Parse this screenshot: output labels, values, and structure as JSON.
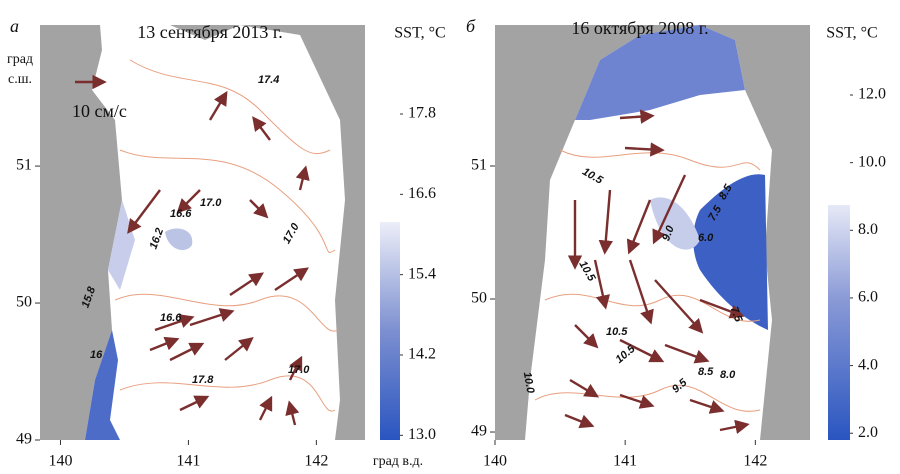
{
  "panels": [
    {
      "letter": "а",
      "title": "13 сентября 2013 г.",
      "unit": "SST, °C",
      "lat_label": [
        "град",
        "с.ш."
      ],
      "lon_label": "град в.д.",
      "scale_label": "10 см/с",
      "xlim": [
        139.84,
        142.38
      ],
      "ylim": [
        49,
        52.03
      ],
      "xticks": [
        140,
        141,
        142
      ],
      "yticks": [
        49,
        50,
        51
      ],
      "colorbar_lim": [
        12.93,
        17.8
      ],
      "colorbar_ticks": [
        {
          "value": 13,
          "label": "13.0"
        },
        {
          "value": 14.2,
          "label": "14.2"
        },
        {
          "value": 15.4,
          "label": "15.4"
        },
        {
          "value": 16.6,
          "label": "16.6"
        },
        {
          "value": 17.8,
          "label": "17.8"
        }
      ],
      "contour_labels": [
        "17.4",
        "17.0",
        "16.6",
        "16.2",
        "17.0",
        "15.8",
        "16.6",
        "17.0",
        "17.8",
        "16"
      ]
    },
    {
      "letter": "б",
      "title": "16 октября 2008 г.",
      "unit": "SST, °C",
      "xlim": [
        140,
        142.42
      ],
      "ylim": [
        48.94,
        52.06
      ],
      "xticks": [
        140,
        141,
        142
      ],
      "yticks": [
        49,
        50,
        51
      ],
      "colorbar_lim": [
        1.8,
        12
      ],
      "colorbar_ticks": [
        {
          "value": 2,
          "label": "2.0"
        },
        {
          "value": 4,
          "label": "4.0"
        },
        {
          "value": 6,
          "label": "6.0"
        },
        {
          "value": 8,
          "label": "8.0"
        },
        {
          "value": 10,
          "label": "10.0"
        },
        {
          "value": 12,
          "label": "12.0"
        }
      ],
      "contour_labels": [
        "10.5",
        "10.5",
        "10.5",
        "10.5",
        "9.0",
        "8.5",
        "7.5",
        "6.0",
        "7.5",
        "8.5",
        "9.5",
        "8.0",
        "10.0"
      ]
    }
  ]
}
